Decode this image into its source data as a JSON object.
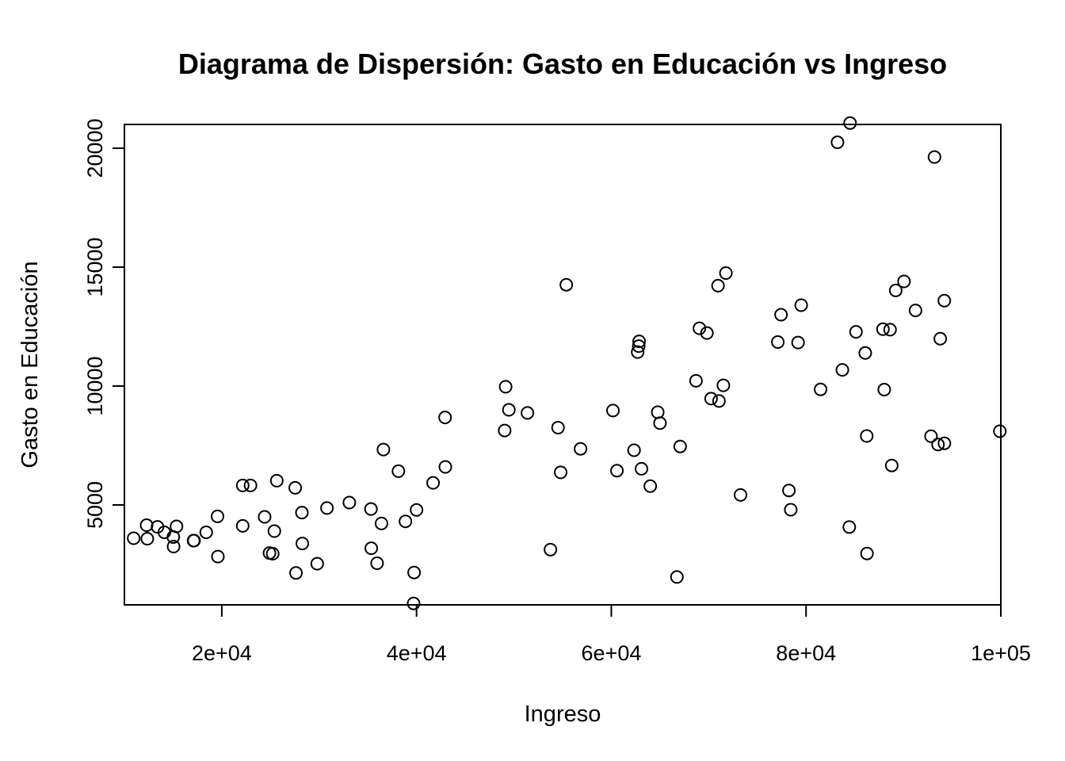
{
  "chart_data": {
    "type": "scatter",
    "title": "Diagrama de Dispersión: Gasto en Educación vs Ingreso",
    "xlabel": "Ingreso",
    "ylabel": "Gasto en Educación",
    "xlim": [
      10000,
      100000
    ],
    "ylim": [
      800,
      21000
    ],
    "x_ticks": [
      20000,
      40000,
      60000,
      80000,
      100000
    ],
    "x_tick_labels": [
      "2e+04",
      "4e+04",
      "6e+04",
      "8e+04",
      "1e+05"
    ],
    "y_ticks": [
      5000,
      10000,
      15000,
      20000
    ],
    "y_tick_labels": [
      "5000",
      "10000",
      "15000",
      "20000"
    ],
    "grid": false,
    "marker": "open-circle",
    "points": [
      [
        10950,
        3600
      ],
      [
        12280,
        4150
      ],
      [
        12350,
        3580
      ],
      [
        13400,
        4080
      ],
      [
        14100,
        3850
      ],
      [
        15020,
        3650
      ],
      [
        15050,
        3250
      ],
      [
        15350,
        4100
      ],
      [
        17100,
        3500
      ],
      [
        17150,
        3500
      ],
      [
        18400,
        3850
      ],
      [
        19560,
        4520
      ],
      [
        19600,
        2830
      ],
      [
        22150,
        5820
      ],
      [
        22150,
        4120
      ],
      [
        22950,
        5820
      ],
      [
        24400,
        4500
      ],
      [
        24900,
        2980
      ],
      [
        25230,
        2950
      ],
      [
        25400,
        3900
      ],
      [
        25650,
        6020
      ],
      [
        27540,
        5720
      ],
      [
        27620,
        2140
      ],
      [
        28230,
        4680
      ],
      [
        28270,
        3380
      ],
      [
        29800,
        2530
      ],
      [
        30800,
        4870
      ],
      [
        33100,
        5100
      ],
      [
        35320,
        4830
      ],
      [
        35350,
        3180
      ],
      [
        35950,
        2550
      ],
      [
        36400,
        4220
      ],
      [
        36600,
        7330
      ],
      [
        38140,
        6420
      ],
      [
        38860,
        4310
      ],
      [
        39750,
        2160
      ],
      [
        39700,
        860
      ],
      [
        40000,
        4790
      ],
      [
        41700,
        5930
      ],
      [
        42930,
        8680
      ],
      [
        42960,
        6600
      ],
      [
        49050,
        8130
      ],
      [
        49150,
        9970
      ],
      [
        49480,
        9000
      ],
      [
        51390,
        8870
      ],
      [
        53750,
        3120
      ],
      [
        54530,
        8250
      ],
      [
        54800,
        6370
      ],
      [
        55380,
        14260
      ],
      [
        56840,
        7360
      ],
      [
        60170,
        8970
      ],
      [
        60580,
        6440
      ],
      [
        62340,
        7300
      ],
      [
        62710,
        11430
      ],
      [
        62820,
        11680
      ],
      [
        62860,
        11880
      ],
      [
        63100,
        6520
      ],
      [
        64000,
        5790
      ],
      [
        64770,
        8900
      ],
      [
        65000,
        8440
      ],
      [
        66740,
        1970
      ],
      [
        67070,
        7460
      ],
      [
        68700,
        10220
      ],
      [
        69050,
        12430
      ],
      [
        69820,
        12230
      ],
      [
        70250,
        9470
      ],
      [
        70960,
        14220
      ],
      [
        71060,
        9370
      ],
      [
        71510,
        10030
      ],
      [
        71770,
        14750
      ],
      [
        73270,
        5420
      ],
      [
        77100,
        11850
      ],
      [
        77430,
        13000
      ],
      [
        78240,
        5610
      ],
      [
        78430,
        4800
      ],
      [
        79180,
        11830
      ],
      [
        79500,
        13400
      ],
      [
        81490,
        9860
      ],
      [
        83230,
        20250
      ],
      [
        83730,
        10680
      ],
      [
        84440,
        4070
      ],
      [
        84520,
        21060
      ],
      [
        85130,
        12280
      ],
      [
        86080,
        11390
      ],
      [
        86230,
        7900
      ],
      [
        86260,
        2960
      ],
      [
        87900,
        12390
      ],
      [
        88030,
        9850
      ],
      [
        88630,
        12370
      ],
      [
        88800,
        6660
      ],
      [
        89210,
        14020
      ],
      [
        90060,
        14400
      ],
      [
        91240,
        13180
      ],
      [
        92830,
        7890
      ],
      [
        93190,
        19630
      ],
      [
        93550,
        7540
      ],
      [
        93780,
        11990
      ],
      [
        94200,
        13590
      ],
      [
        94210,
        7590
      ],
      [
        99900,
        8100
      ]
    ]
  }
}
